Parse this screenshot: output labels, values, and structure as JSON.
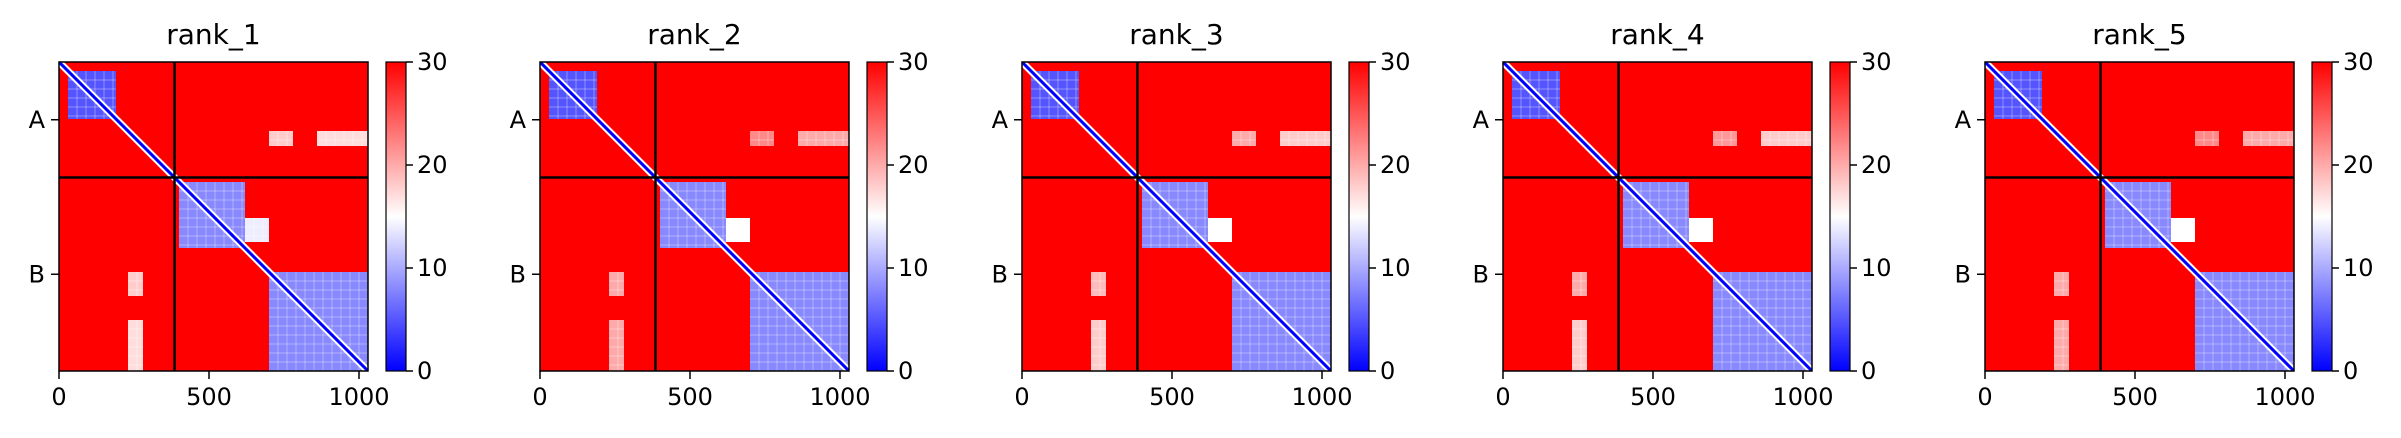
{
  "chart_data": [
    {
      "type": "heatmap",
      "title": "rank_1",
      "xlabel": "",
      "ylabel": "",
      "xlim": [
        0,
        1030
      ],
      "x_ticks": [
        "0",
        "500",
        "1000"
      ],
      "y_ticks": [
        "A",
        "B"
      ],
      "chain_boundary": 385,
      "colorbar": {
        "min": 0,
        "max": 30,
        "ticks": [
          "0",
          "10",
          "20",
          "30"
        ],
        "colormap": "bwr"
      },
      "blocks": [
        {
          "x0": 30,
          "x1": 190,
          "y0": 30,
          "y1": 190,
          "value": 5
        },
        {
          "x0": 400,
          "x1": 620,
          "y0": 400,
          "y1": 620,
          "value": 8
        },
        {
          "x0": 620,
          "x1": 700,
          "y0": 520,
          "y1": 600,
          "value": 14
        },
        {
          "x0": 700,
          "x1": 1030,
          "y0": 700,
          "y1": 1030,
          "value": 8
        },
        {
          "x0": 700,
          "x1": 780,
          "y0": 230,
          "y1": 280,
          "value": 18
        },
        {
          "x0": 860,
          "x1": 1030,
          "y0": 230,
          "y1": 280,
          "value": 17
        },
        {
          "x0": 230,
          "x1": 280,
          "y0": 700,
          "y1": 780,
          "value": 18
        },
        {
          "x0": 230,
          "x1": 280,
          "y0": 860,
          "y1": 1030,
          "value": 17
        }
      ]
    },
    {
      "type": "heatmap",
      "title": "rank_2",
      "xlabel": "",
      "ylabel": "",
      "xlim": [
        0,
        1030
      ],
      "x_ticks": [
        "0",
        "500",
        "1000"
      ],
      "y_ticks": [
        "A",
        "B"
      ],
      "chain_boundary": 385,
      "colorbar": {
        "min": 0,
        "max": 30,
        "ticks": [
          "0",
          "10",
          "20",
          "30"
        ],
        "colormap": "bwr"
      },
      "blocks": [
        {
          "x0": 30,
          "x1": 190,
          "y0": 30,
          "y1": 190,
          "value": 5
        },
        {
          "x0": 400,
          "x1": 620,
          "y0": 400,
          "y1": 620,
          "value": 8
        },
        {
          "x0": 620,
          "x1": 700,
          "y0": 520,
          "y1": 600,
          "value": 15
        },
        {
          "x0": 700,
          "x1": 1030,
          "y0": 700,
          "y1": 1030,
          "value": 8
        },
        {
          "x0": 700,
          "x1": 780,
          "y0": 230,
          "y1": 280,
          "value": 22
        },
        {
          "x0": 860,
          "x1": 1030,
          "y0": 230,
          "y1": 280,
          "value": 20
        },
        {
          "x0": 230,
          "x1": 280,
          "y0": 700,
          "y1": 780,
          "value": 20
        },
        {
          "x0": 230,
          "x1": 280,
          "y0": 860,
          "y1": 1030,
          "value": 20
        }
      ]
    },
    {
      "type": "heatmap",
      "title": "rank_3",
      "xlabel": "",
      "ylabel": "",
      "xlim": [
        0,
        1030
      ],
      "x_ticks": [
        "0",
        "500",
        "1000"
      ],
      "y_ticks": [
        "A",
        "B"
      ],
      "chain_boundary": 385,
      "colorbar": {
        "min": 0,
        "max": 30,
        "ticks": [
          "0",
          "10",
          "20",
          "30"
        ],
        "colormap": "bwr"
      },
      "blocks": [
        {
          "x0": 30,
          "x1": 190,
          "y0": 30,
          "y1": 190,
          "value": 5
        },
        {
          "x0": 400,
          "x1": 620,
          "y0": 400,
          "y1": 620,
          "value": 8
        },
        {
          "x0": 620,
          "x1": 700,
          "y0": 520,
          "y1": 600,
          "value": 15
        },
        {
          "x0": 700,
          "x1": 1030,
          "y0": 700,
          "y1": 1030,
          "value": 8
        },
        {
          "x0": 700,
          "x1": 780,
          "y0": 230,
          "y1": 280,
          "value": 20
        },
        {
          "x0": 860,
          "x1": 1030,
          "y0": 230,
          "y1": 280,
          "value": 18
        },
        {
          "x0": 230,
          "x1": 280,
          "y0": 700,
          "y1": 780,
          "value": 19
        },
        {
          "x0": 230,
          "x1": 280,
          "y0": 860,
          "y1": 1030,
          "value": 18
        }
      ]
    },
    {
      "type": "heatmap",
      "title": "rank_4",
      "xlabel": "",
      "ylabel": "",
      "xlim": [
        0,
        1030
      ],
      "x_ticks": [
        "0",
        "500",
        "1000"
      ],
      "y_ticks": [
        "A",
        "B"
      ],
      "chain_boundary": 385,
      "colorbar": {
        "min": 0,
        "max": 30,
        "ticks": [
          "0",
          "10",
          "20",
          "30"
        ],
        "colormap": "bwr"
      },
      "blocks": [
        {
          "x0": 30,
          "x1": 190,
          "y0": 30,
          "y1": 190,
          "value": 5
        },
        {
          "x0": 400,
          "x1": 620,
          "y0": 400,
          "y1": 620,
          "value": 8
        },
        {
          "x0": 620,
          "x1": 700,
          "y0": 520,
          "y1": 600,
          "value": 15
        },
        {
          "x0": 700,
          "x1": 1030,
          "y0": 700,
          "y1": 1030,
          "value": 8
        },
        {
          "x0": 700,
          "x1": 780,
          "y0": 230,
          "y1": 280,
          "value": 21
        },
        {
          "x0": 860,
          "x1": 1030,
          "y0": 230,
          "y1": 280,
          "value": 18
        },
        {
          "x0": 230,
          "x1": 280,
          "y0": 700,
          "y1": 780,
          "value": 20
        },
        {
          "x0": 230,
          "x1": 280,
          "y0": 860,
          "y1": 1030,
          "value": 18
        }
      ]
    },
    {
      "type": "heatmap",
      "title": "rank_5",
      "xlabel": "",
      "ylabel": "",
      "xlim": [
        0,
        1030
      ],
      "x_ticks": [
        "0",
        "500",
        "1000"
      ],
      "y_ticks": [
        "A",
        "B"
      ],
      "chain_boundary": 385,
      "colorbar": {
        "min": 0,
        "max": 30,
        "ticks": [
          "0",
          "10",
          "20",
          "30"
        ],
        "colormap": "bwr"
      },
      "blocks": [
        {
          "x0": 30,
          "x1": 190,
          "y0": 30,
          "y1": 190,
          "value": 5
        },
        {
          "x0": 400,
          "x1": 620,
          "y0": 400,
          "y1": 620,
          "value": 8
        },
        {
          "x0": 620,
          "x1": 700,
          "y0": 520,
          "y1": 600,
          "value": 15
        },
        {
          "x0": 700,
          "x1": 1030,
          "y0": 700,
          "y1": 1030,
          "value": 8
        },
        {
          "x0": 700,
          "x1": 780,
          "y0": 230,
          "y1": 280,
          "value": 22
        },
        {
          "x0": 860,
          "x1": 1030,
          "y0": 230,
          "y1": 280,
          "value": 20
        },
        {
          "x0": 230,
          "x1": 280,
          "y0": 700,
          "y1": 780,
          "value": 20
        },
        {
          "x0": 230,
          "x1": 280,
          "y0": 860,
          "y1": 1030,
          "value": 20
        }
      ]
    }
  ],
  "colors": {
    "low": "#0000ff",
    "mid": "#ffffff",
    "high": "#ff0000",
    "background_value": 30,
    "diagonal_value": 0
  }
}
